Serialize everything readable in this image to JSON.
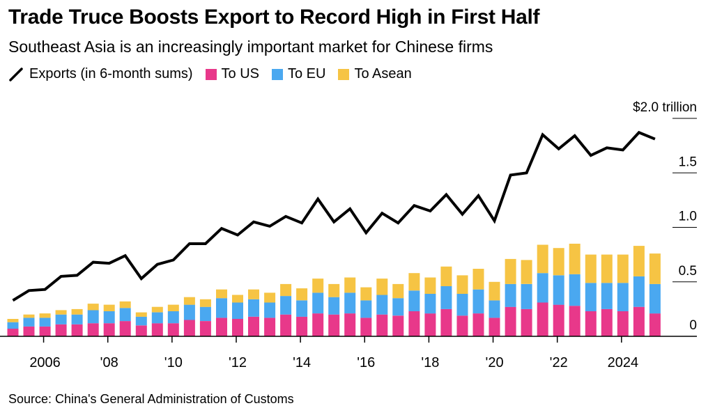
{
  "title": "Trade Truce Boosts Export to Record High in First Half",
  "subtitle": "Southeast Asia is an increasingly important market for Chinese firms",
  "legend": {
    "exports": "Exports (in 6-month sums)",
    "us": "To US",
    "eu": "To EU",
    "asean": "To Asean"
  },
  "source": "Source: China's General Administration of Customs",
  "colors": {
    "us": "#e8388a",
    "eu": "#4aa8f0",
    "asean": "#f6c444",
    "line": "#000000"
  },
  "chart_data": {
    "type": "bar",
    "stacked": true,
    "periods": [
      "2005 H1",
      "2005 H2",
      "2006 H1",
      "2006 H2",
      "2007 H1",
      "2007 H2",
      "2008 H1",
      "2008 H2",
      "2009 H1",
      "2009 H2",
      "2010 H1",
      "2010 H2",
      "2011 H1",
      "2011 H2",
      "2012 H1",
      "2012 H2",
      "2013 H1",
      "2013 H2",
      "2014 H1",
      "2014 H2",
      "2015 H1",
      "2015 H2",
      "2016 H1",
      "2016 H2",
      "2017 H1",
      "2017 H2",
      "2018 H1",
      "2018 H2",
      "2019 H1",
      "2019 H2",
      "2020 H1",
      "2020 H2",
      "2021 H1",
      "2021 H2",
      "2022 H1",
      "2022 H2",
      "2023 H1",
      "2023 H2",
      "2024 H1",
      "2024 H2",
      "2025 H1"
    ],
    "series": [
      {
        "name": "To US",
        "values": [
          0.07,
          0.09,
          0.09,
          0.11,
          0.11,
          0.12,
          0.12,
          0.14,
          0.1,
          0.12,
          0.12,
          0.15,
          0.14,
          0.17,
          0.16,
          0.18,
          0.17,
          0.2,
          0.18,
          0.21,
          0.2,
          0.21,
          0.17,
          0.2,
          0.19,
          0.23,
          0.21,
          0.25,
          0.19,
          0.21,
          0.17,
          0.27,
          0.25,
          0.31,
          0.29,
          0.28,
          0.23,
          0.25,
          0.23,
          0.27,
          0.21
        ]
      },
      {
        "name": "To EU",
        "values": [
          0.06,
          0.08,
          0.08,
          0.09,
          0.09,
          0.12,
          0.11,
          0.12,
          0.08,
          0.1,
          0.11,
          0.14,
          0.13,
          0.18,
          0.15,
          0.16,
          0.14,
          0.17,
          0.15,
          0.19,
          0.16,
          0.19,
          0.16,
          0.18,
          0.16,
          0.19,
          0.18,
          0.21,
          0.2,
          0.22,
          0.16,
          0.21,
          0.23,
          0.27,
          0.27,
          0.29,
          0.26,
          0.24,
          0.26,
          0.28,
          0.27
        ]
      },
      {
        "name": "To Asean",
        "values": [
          0.03,
          0.03,
          0.04,
          0.04,
          0.05,
          0.06,
          0.06,
          0.06,
          0.04,
          0.05,
          0.06,
          0.07,
          0.07,
          0.08,
          0.07,
          0.09,
          0.09,
          0.11,
          0.11,
          0.13,
          0.12,
          0.14,
          0.12,
          0.15,
          0.13,
          0.16,
          0.15,
          0.18,
          0.17,
          0.19,
          0.17,
          0.23,
          0.22,
          0.26,
          0.25,
          0.28,
          0.26,
          0.26,
          0.26,
          0.28,
          0.28
        ]
      }
    ],
    "line": {
      "name": "Exports (in 6-month sums)",
      "values": [
        0.33,
        0.42,
        0.43,
        0.55,
        0.56,
        0.68,
        0.67,
        0.74,
        0.53,
        0.66,
        0.7,
        0.85,
        0.85,
        0.99,
        0.93,
        1.05,
        1.01,
        1.1,
        1.04,
        1.26,
        1.05,
        1.17,
        0.95,
        1.13,
        1.04,
        1.2,
        1.15,
        1.3,
        1.12,
        1.29,
        1.06,
        1.48,
        1.5,
        1.85,
        1.72,
        1.84,
        1.66,
        1.73,
        1.71,
        1.87,
        1.81
      ]
    },
    "y_ticks": [
      {
        "value": 0,
        "label": "0"
      },
      {
        "value": 0.5,
        "label": "0.5"
      },
      {
        "value": 1.0,
        "label": "1.0"
      },
      {
        "value": 1.5,
        "label": "1.5"
      },
      {
        "value": 2.0,
        "label": "$2.0 trillion"
      }
    ],
    "x_ticks": [
      {
        "year": 2006,
        "label": "2006"
      },
      {
        "year": 2008,
        "label": "'08"
      },
      {
        "year": 2010,
        "label": "'10"
      },
      {
        "year": 2012,
        "label": "'12"
      },
      {
        "year": 2014,
        "label": "'14"
      },
      {
        "year": 2016,
        "label": "'16"
      },
      {
        "year": 2018,
        "label": "'18"
      },
      {
        "year": 2020,
        "label": "'20"
      },
      {
        "year": 2022,
        "label": "'22"
      },
      {
        "year": 2024,
        "label": "2024"
      }
    ],
    "ylim": [
      0,
      2.0
    ],
    "xlim": [
      2005,
      2025.5
    ]
  }
}
